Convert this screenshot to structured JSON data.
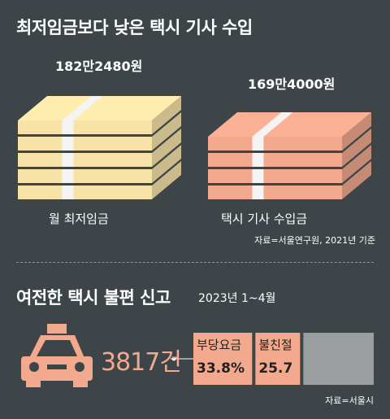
{
  "title": "최저임금보다 낮은 택시 기사 수입",
  "min_wage": {
    "amount": "182만2480원",
    "label": "월 최저임금"
  },
  "taxi_income": {
    "amount": "169만4000원",
    "label": "택시 기사 수입금"
  },
  "source_top": "자료=서울연구원, 2021년 기준",
  "section2": {
    "title": "여전한 택시 불편 신고",
    "date": "2023년 1~4월"
  },
  "complaints": {
    "total": "3817건"
  },
  "source_bottom": "자료=서울시",
  "colors": {
    "background": "#3d4548",
    "cream": "#f7e3a8",
    "salmon": "#f2a98e",
    "gray": "#9a9ea0",
    "white": "#ffffff"
  },
  "icons": [
    "cash-stack-icon",
    "taxi-icon"
  ],
  "chart_data": {
    "type": "bar",
    "orientation": "horizontal-stacked",
    "categories": [
      "부당요금",
      "불친절",
      ""
    ],
    "values": [
      33.8,
      25.7,
      40.5
    ],
    "value_labels": [
      "33.8%",
      "25.7",
      ""
    ],
    "unit": "%",
    "xlim": [
      0,
      100
    ]
  }
}
